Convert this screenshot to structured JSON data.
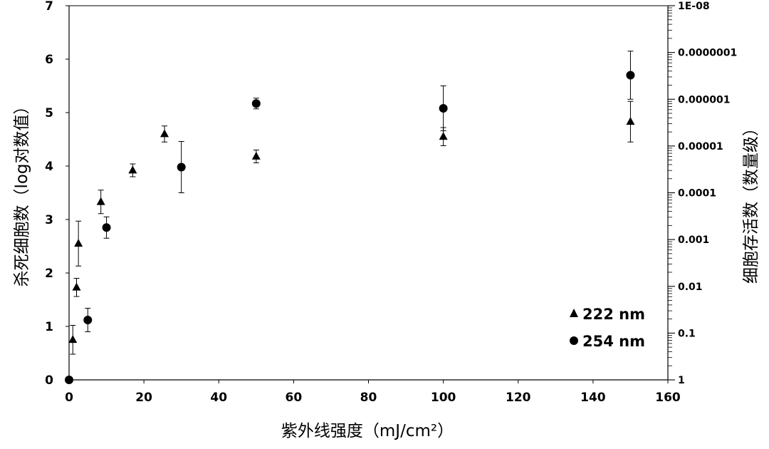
{
  "chart_data": {
    "type": "scatter",
    "title": "",
    "xlabel": "紫外线强度（mJ/cm²）",
    "ylabel": "杀死细胞数（log对数值）",
    "ylabel_right": "细胞存活数（数量级）",
    "xlim": [
      0,
      160
    ],
    "ylim": [
      0,
      7
    ],
    "x_ticks": [
      "0",
      "20",
      "40",
      "60",
      "80",
      "100",
      "120",
      "140",
      "160"
    ],
    "y_ticks": [
      "0",
      "1",
      "2",
      "3",
      "4",
      "5",
      "6",
      "7"
    ],
    "y_right_scale": "log",
    "y_right_ticks": [
      "1",
      "0.1",
      "0.01",
      "0.001",
      "0.0001",
      "0.00001",
      "0.000001",
      "0.0000001",
      "1E-08"
    ],
    "legend_position": "bottom-right",
    "grid": false,
    "series": [
      {
        "name": "222 nm",
        "marker": "triangle",
        "color": "#000000",
        "points": [
          {
            "x": 1,
            "y": 0.75,
            "err": 0.27
          },
          {
            "x": 2,
            "y": 1.73,
            "err": 0.17
          },
          {
            "x": 2.5,
            "y": 2.55,
            "err": 0.42
          },
          {
            "x": 8.5,
            "y": 3.33,
            "err": 0.22
          },
          {
            "x": 17,
            "y": 3.92,
            "err": 0.12
          },
          {
            "x": 25.5,
            "y": 4.6,
            "err": 0.15
          },
          {
            "x": 50,
            "y": 4.18,
            "err": 0.12
          },
          {
            "x": 100,
            "y": 4.55,
            "err": 0.17
          },
          {
            "x": 150,
            "y": 4.83,
            "err": 0.38
          }
        ]
      },
      {
        "name": "254 nm",
        "marker": "circle",
        "color": "#000000",
        "points": [
          {
            "x": 0,
            "y": 0,
            "err": 0
          },
          {
            "x": 5,
            "y": 1.12,
            "err": 0.22
          },
          {
            "x": 10,
            "y": 2.85,
            "err": 0.2
          },
          {
            "x": 30,
            "y": 3.98,
            "err": 0.48
          },
          {
            "x": 50,
            "y": 5.17,
            "err": 0.1
          },
          {
            "x": 100,
            "y": 5.08,
            "err": 0.42
          },
          {
            "x": 150,
            "y": 5.7,
            "err": 0.45
          }
        ]
      }
    ]
  }
}
